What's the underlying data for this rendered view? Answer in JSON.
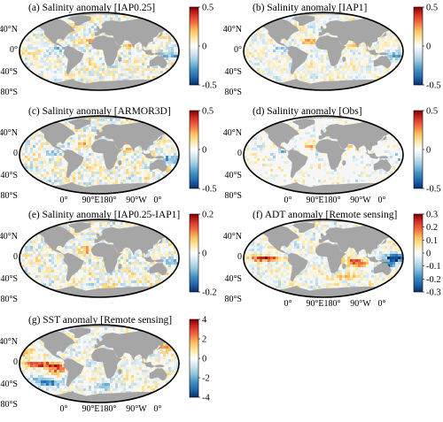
{
  "colormap": {
    "name": "RdYlBu-reversed",
    "stops": [
      "#08306b",
      "#2166ac",
      "#4393c3",
      "#92c5de",
      "#d1e5f0",
      "#ffffff",
      "#fde8a8",
      "#fdbf5e",
      "#f46d43",
      "#d73027",
      "#7f0000"
    ],
    "land_color": "#a6a6a6",
    "ocean_neutral": "#f7f7f7"
  },
  "panels": [
    {
      "id": "a",
      "title": "(a) Salinity anomaly [IAP0.25]",
      "lat_ticks": [
        "40°N",
        "0°",
        "40°S",
        "80°S"
      ],
      "lon_ticks": [],
      "colorbar_ticks": [
        "0.5",
        "0",
        "-0.5"
      ],
      "pattern": "salinity_hi"
    },
    {
      "id": "b",
      "title": "(b) Salinity anomaly [IAP1]",
      "lat_ticks": [
        "40°N",
        "0°",
        "40°S",
        "80°S"
      ],
      "lon_ticks": [],
      "colorbar_ticks": [
        "0.5",
        "0",
        "-0.5"
      ],
      "pattern": "salinity_smooth"
    },
    {
      "id": "c",
      "title": "(c) Salinity anomaly [ARMOR3D]",
      "lat_ticks": [
        "40°N",
        "0",
        "40°S",
        "80°S"
      ],
      "lon_ticks": [
        "0°",
        "90°E180°",
        "90°W",
        "0°"
      ],
      "colorbar_ticks": [
        "0.5",
        "0",
        "-0.5"
      ],
      "pattern": "salinity_hi"
    },
    {
      "id": "d",
      "title": "(d) Salinity anomaly [Obs]",
      "lat_ticks": [
        "40°N",
        "0",
        "40°S",
        "80°S"
      ],
      "lon_ticks": [
        "0°",
        "90°E180°",
        "90°W",
        "0°"
      ],
      "colorbar_ticks": [
        "0.5",
        "0",
        "-0.5"
      ],
      "pattern": "salinity_sparse"
    },
    {
      "id": "e",
      "title": "(e) Salinity anomaly [IAP0.25-IAP1]",
      "lat_ticks": [
        "40°N",
        "0",
        "40°S",
        "80°S"
      ],
      "lon_ticks": [],
      "colorbar_ticks": [
        "0.2",
        "0",
        "-0.2"
      ],
      "pattern": "salinity_diff"
    },
    {
      "id": "f",
      "title": "(f) ADT anomaly [Remote sensing]",
      "lat_ticks": [
        "40°N",
        "0",
        "40°S",
        "80°S"
      ],
      "lon_ticks": [
        "0°",
        "90°E180°",
        "90°W",
        "0°"
      ],
      "colorbar_ticks": [
        "0.3",
        "0.2",
        "0.1",
        "0",
        "-0.1",
        "-0.2",
        "-0.3"
      ],
      "pattern": "adt"
    },
    {
      "id": "g",
      "title": "(g) SST anomaly [Remote sensing]",
      "lat_ticks": [
        "40°N",
        "0",
        "40°S",
        "80°S"
      ],
      "lon_ticks": [
        "0°",
        "90°E180°",
        "90°W",
        "0°"
      ],
      "colorbar_ticks": [
        "4",
        "2",
        "0",
        "-2",
        "-4"
      ],
      "pattern": "sst"
    }
  ]
}
